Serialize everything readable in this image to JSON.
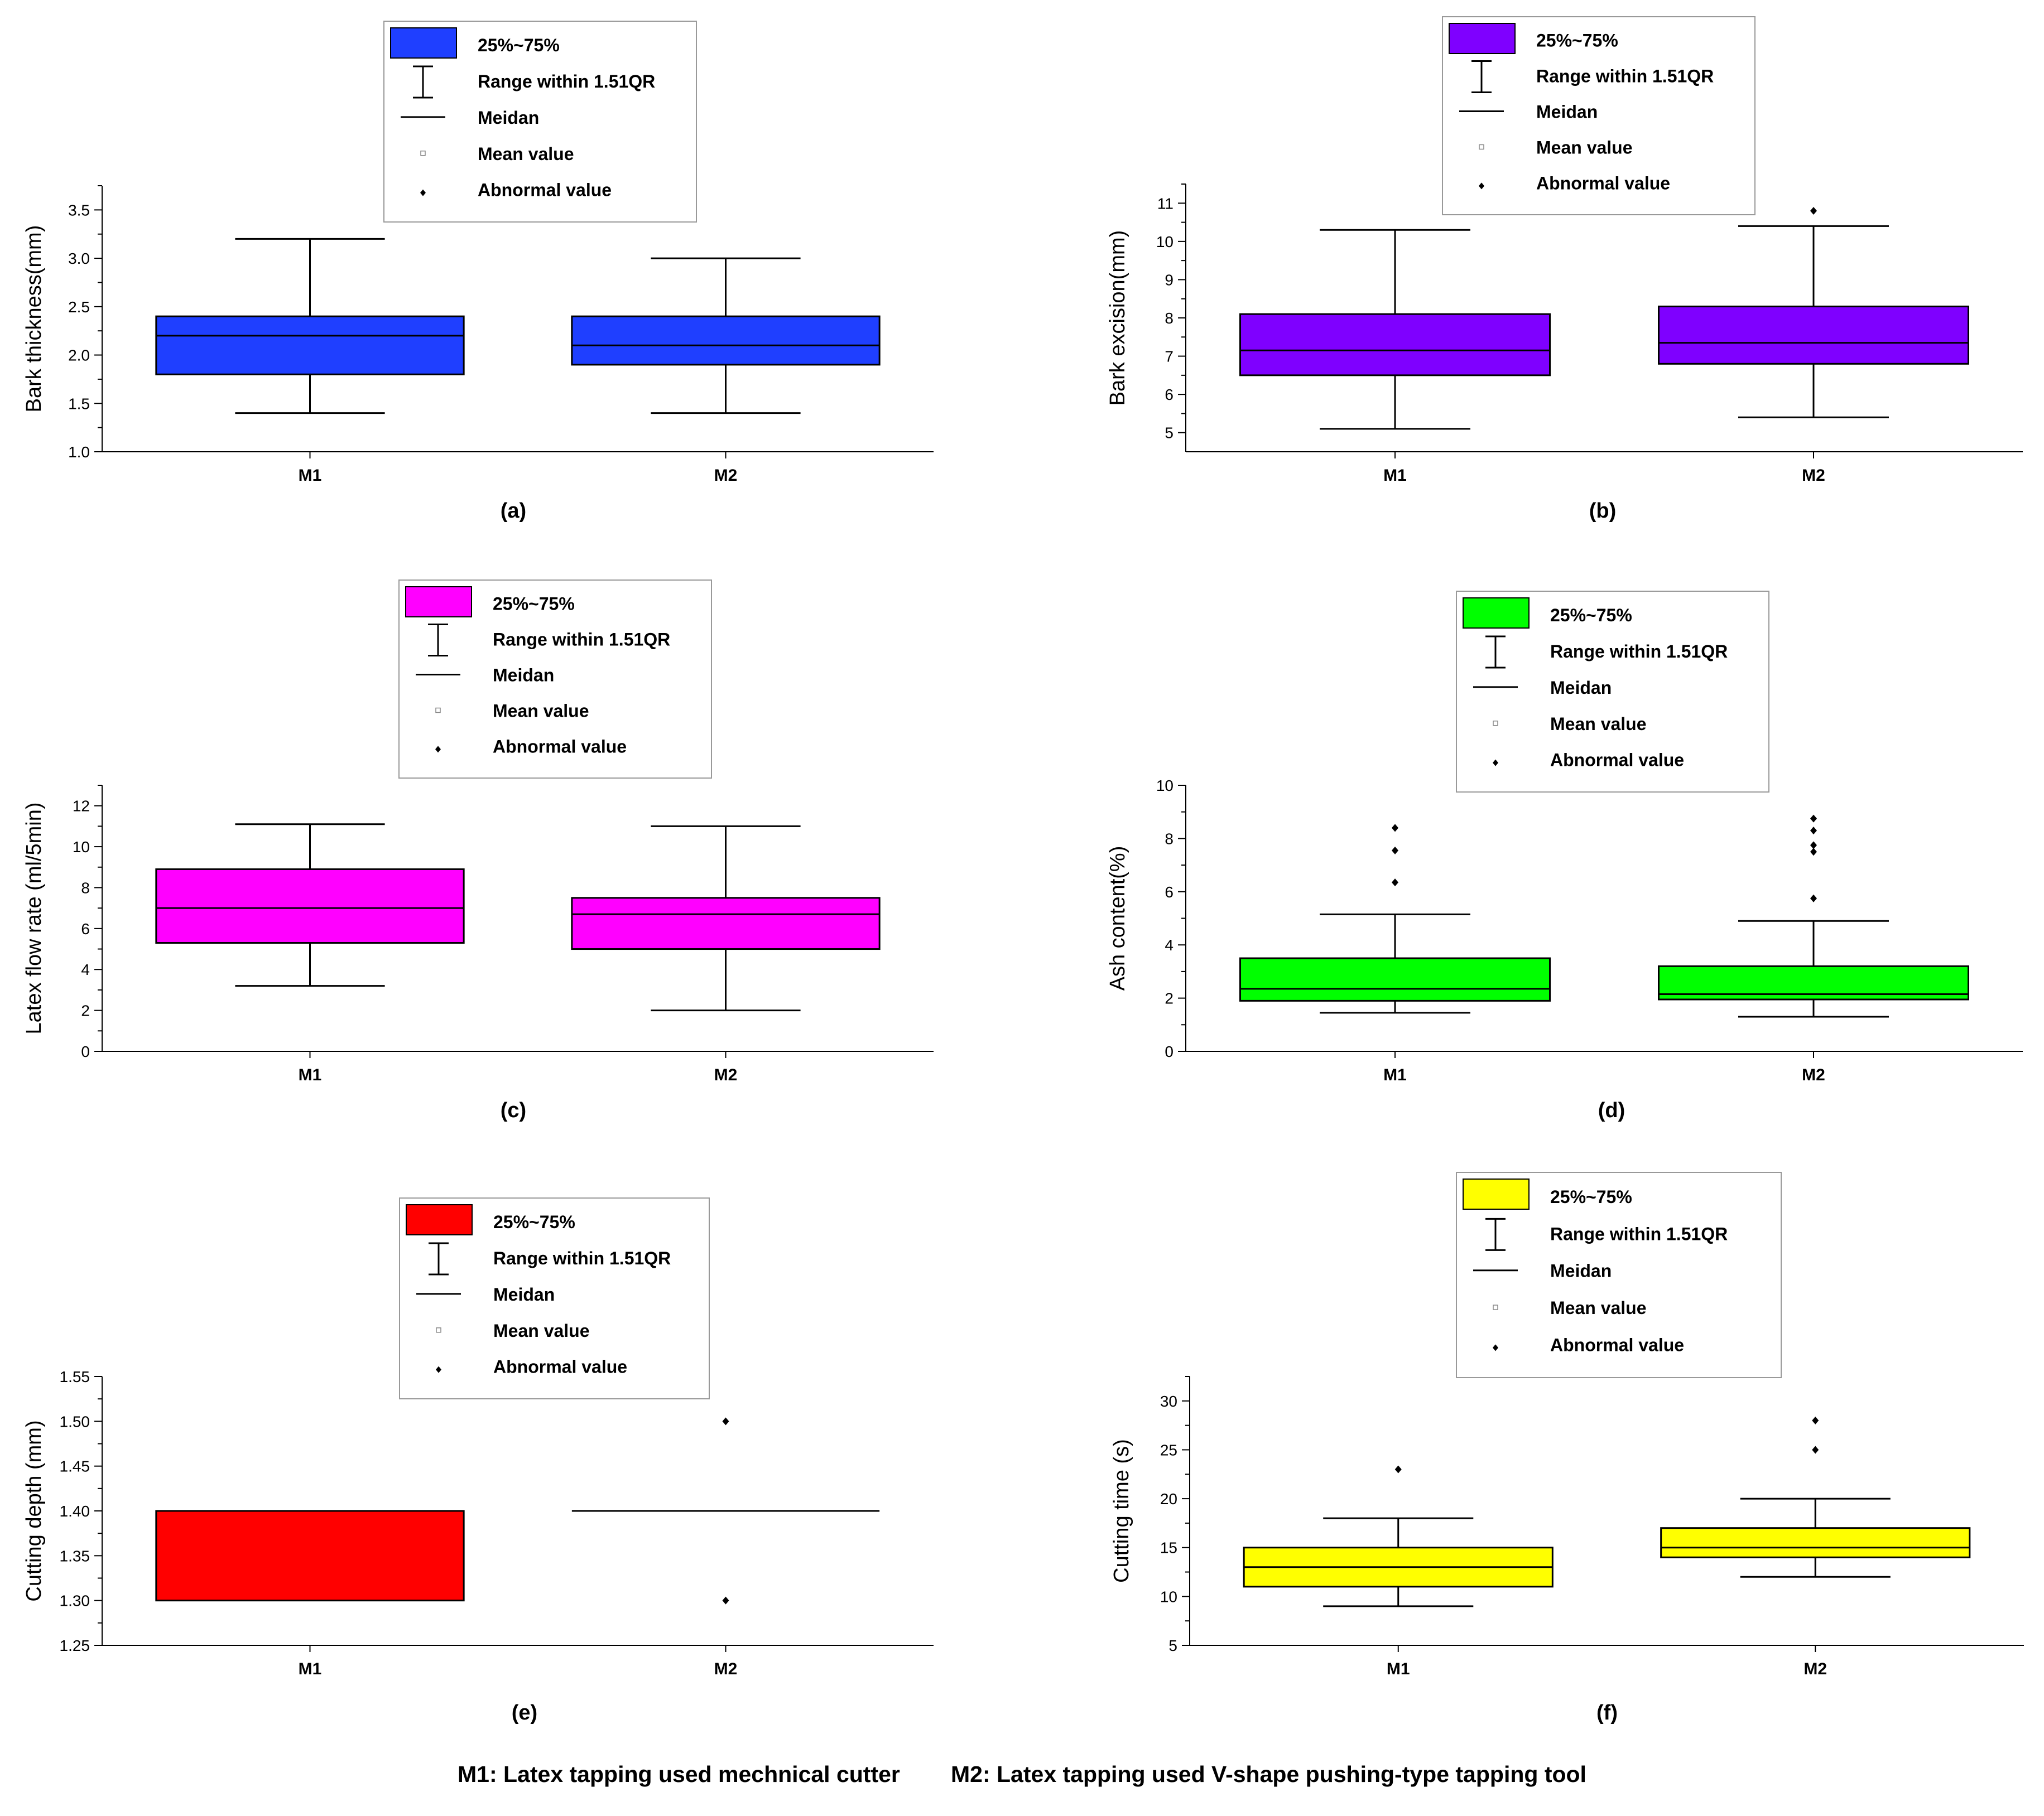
{
  "legend": {
    "box_label": "25%~75%",
    "range_label": "Range within 1.51QR",
    "median_label": "Meidan",
    "mean_label": "Mean value",
    "abnormal_label": "Abnormal value"
  },
  "footer": {
    "m1_text": "M1: Latex tapping used mechnical cutter",
    "m2_text": "M2: Latex tapping used V-shape pushing-type tapping tool"
  },
  "chart_data": [
    {
      "id": "a",
      "type": "box",
      "panel_label": "(a)",
      "color": "#1f3fff",
      "ylabel": "Bark thickness(mm)",
      "ylim": [
        1.0,
        3.75
      ],
      "yticks": [
        "1.0",
        "1.5",
        "2.0",
        "2.5",
        "3.0",
        "3.5"
      ],
      "categories": [
        "M1",
        "M2"
      ],
      "boxes": [
        {
          "q1": 1.8,
          "median": 2.2,
          "q3": 2.4,
          "whisker_low": 1.4,
          "whisker_high": 3.2,
          "outliers": []
        },
        {
          "q1": 1.9,
          "median": 2.1,
          "q3": 2.4,
          "whisker_low": 1.4,
          "whisker_high": 3.0,
          "outliers": []
        }
      ]
    },
    {
      "id": "b",
      "type": "box",
      "panel_label": "(b)",
      "color": "#7f00ff",
      "ylabel": "Bark excision(mm)",
      "ylim": [
        4.5,
        11.5
      ],
      "yticks": [
        "5",
        "6",
        "7",
        "8",
        "9",
        "10",
        "11"
      ],
      "categories": [
        "M1",
        "M2"
      ],
      "boxes": [
        {
          "q1": 6.5,
          "median": 7.15,
          "q3": 8.1,
          "whisker_low": 5.1,
          "whisker_high": 10.3,
          "outliers": []
        },
        {
          "q1": 6.8,
          "median": 7.35,
          "q3": 8.3,
          "whisker_low": 5.4,
          "whisker_high": 10.4,
          "outliers": [
            10.8
          ]
        }
      ]
    },
    {
      "id": "c",
      "type": "box",
      "panel_label": "(c)",
      "color": "#ff00ff",
      "ylabel": "Latex flow rate (ml/5min)",
      "ylim": [
        0,
        13
      ],
      "yticks": [
        "0",
        "2",
        "4",
        "6",
        "8",
        "10",
        "12"
      ],
      "categories": [
        "M1",
        "M2"
      ],
      "boxes": [
        {
          "q1": 5.3,
          "median": 7.0,
          "q3": 8.9,
          "whisker_low": 3.2,
          "whisker_high": 11.1,
          "outliers": []
        },
        {
          "q1": 5.0,
          "median": 6.7,
          "q3": 7.5,
          "whisker_low": 2.0,
          "whisker_high": 11.0,
          "outliers": []
        }
      ]
    },
    {
      "id": "d",
      "type": "box",
      "panel_label": "(d)",
      "color": "#00ff00",
      "ylabel": "Ash content(%)",
      "ylim": [
        0,
        10
      ],
      "yticks": [
        "0",
        "2",
        "4",
        "6",
        "8",
        "10"
      ],
      "categories": [
        "M1",
        "M2"
      ],
      "boxes": [
        {
          "q1": 1.9,
          "median": 2.35,
          "q3": 3.5,
          "whisker_low": 1.45,
          "whisker_high": 5.15,
          "outliers": [
            6.35,
            7.55,
            8.4
          ]
        },
        {
          "q1": 1.95,
          "median": 2.15,
          "q3": 3.2,
          "whisker_low": 1.3,
          "whisker_high": 4.9,
          "outliers": [
            5.75,
            7.5,
            7.75,
            8.3,
            8.75
          ]
        }
      ]
    },
    {
      "id": "e",
      "type": "box",
      "panel_label": "(e)",
      "color": "#ff0000",
      "ylabel": "Cutting depth (mm)",
      "ylim": [
        1.25,
        1.55
      ],
      "yticks": [
        "1.25",
        "1.30",
        "1.35",
        "1.40",
        "1.45",
        "1.50",
        "1.55"
      ],
      "categories": [
        "M1",
        "M2"
      ],
      "boxes": [
        {
          "q1": 1.3,
          "median": 1.4,
          "q3": 1.4,
          "whisker_low": 1.3,
          "whisker_high": 1.4,
          "outliers": []
        },
        {
          "q1": 1.4,
          "median": 1.4,
          "q3": 1.4,
          "whisker_low": 1.4,
          "whisker_high": 1.4,
          "outliers": [
            1.3,
            1.5
          ]
        }
      ]
    },
    {
      "id": "f",
      "type": "box",
      "panel_label": "(f)",
      "color": "#ffff00",
      "ylabel": "Cutting time (s)",
      "ylim": [
        5,
        32.5
      ],
      "yticks": [
        "5",
        "10",
        "15",
        "20",
        "25",
        "30"
      ],
      "categories": [
        "M1",
        "M2"
      ],
      "boxes": [
        {
          "q1": 11,
          "median": 13,
          "q3": 15,
          "whisker_low": 9,
          "whisker_high": 18,
          "outliers": [
            23
          ]
        },
        {
          "q1": 14,
          "median": 15,
          "q3": 17,
          "whisker_low": 12,
          "whisker_high": 20,
          "outliers": [
            25,
            28
          ]
        }
      ]
    }
  ]
}
